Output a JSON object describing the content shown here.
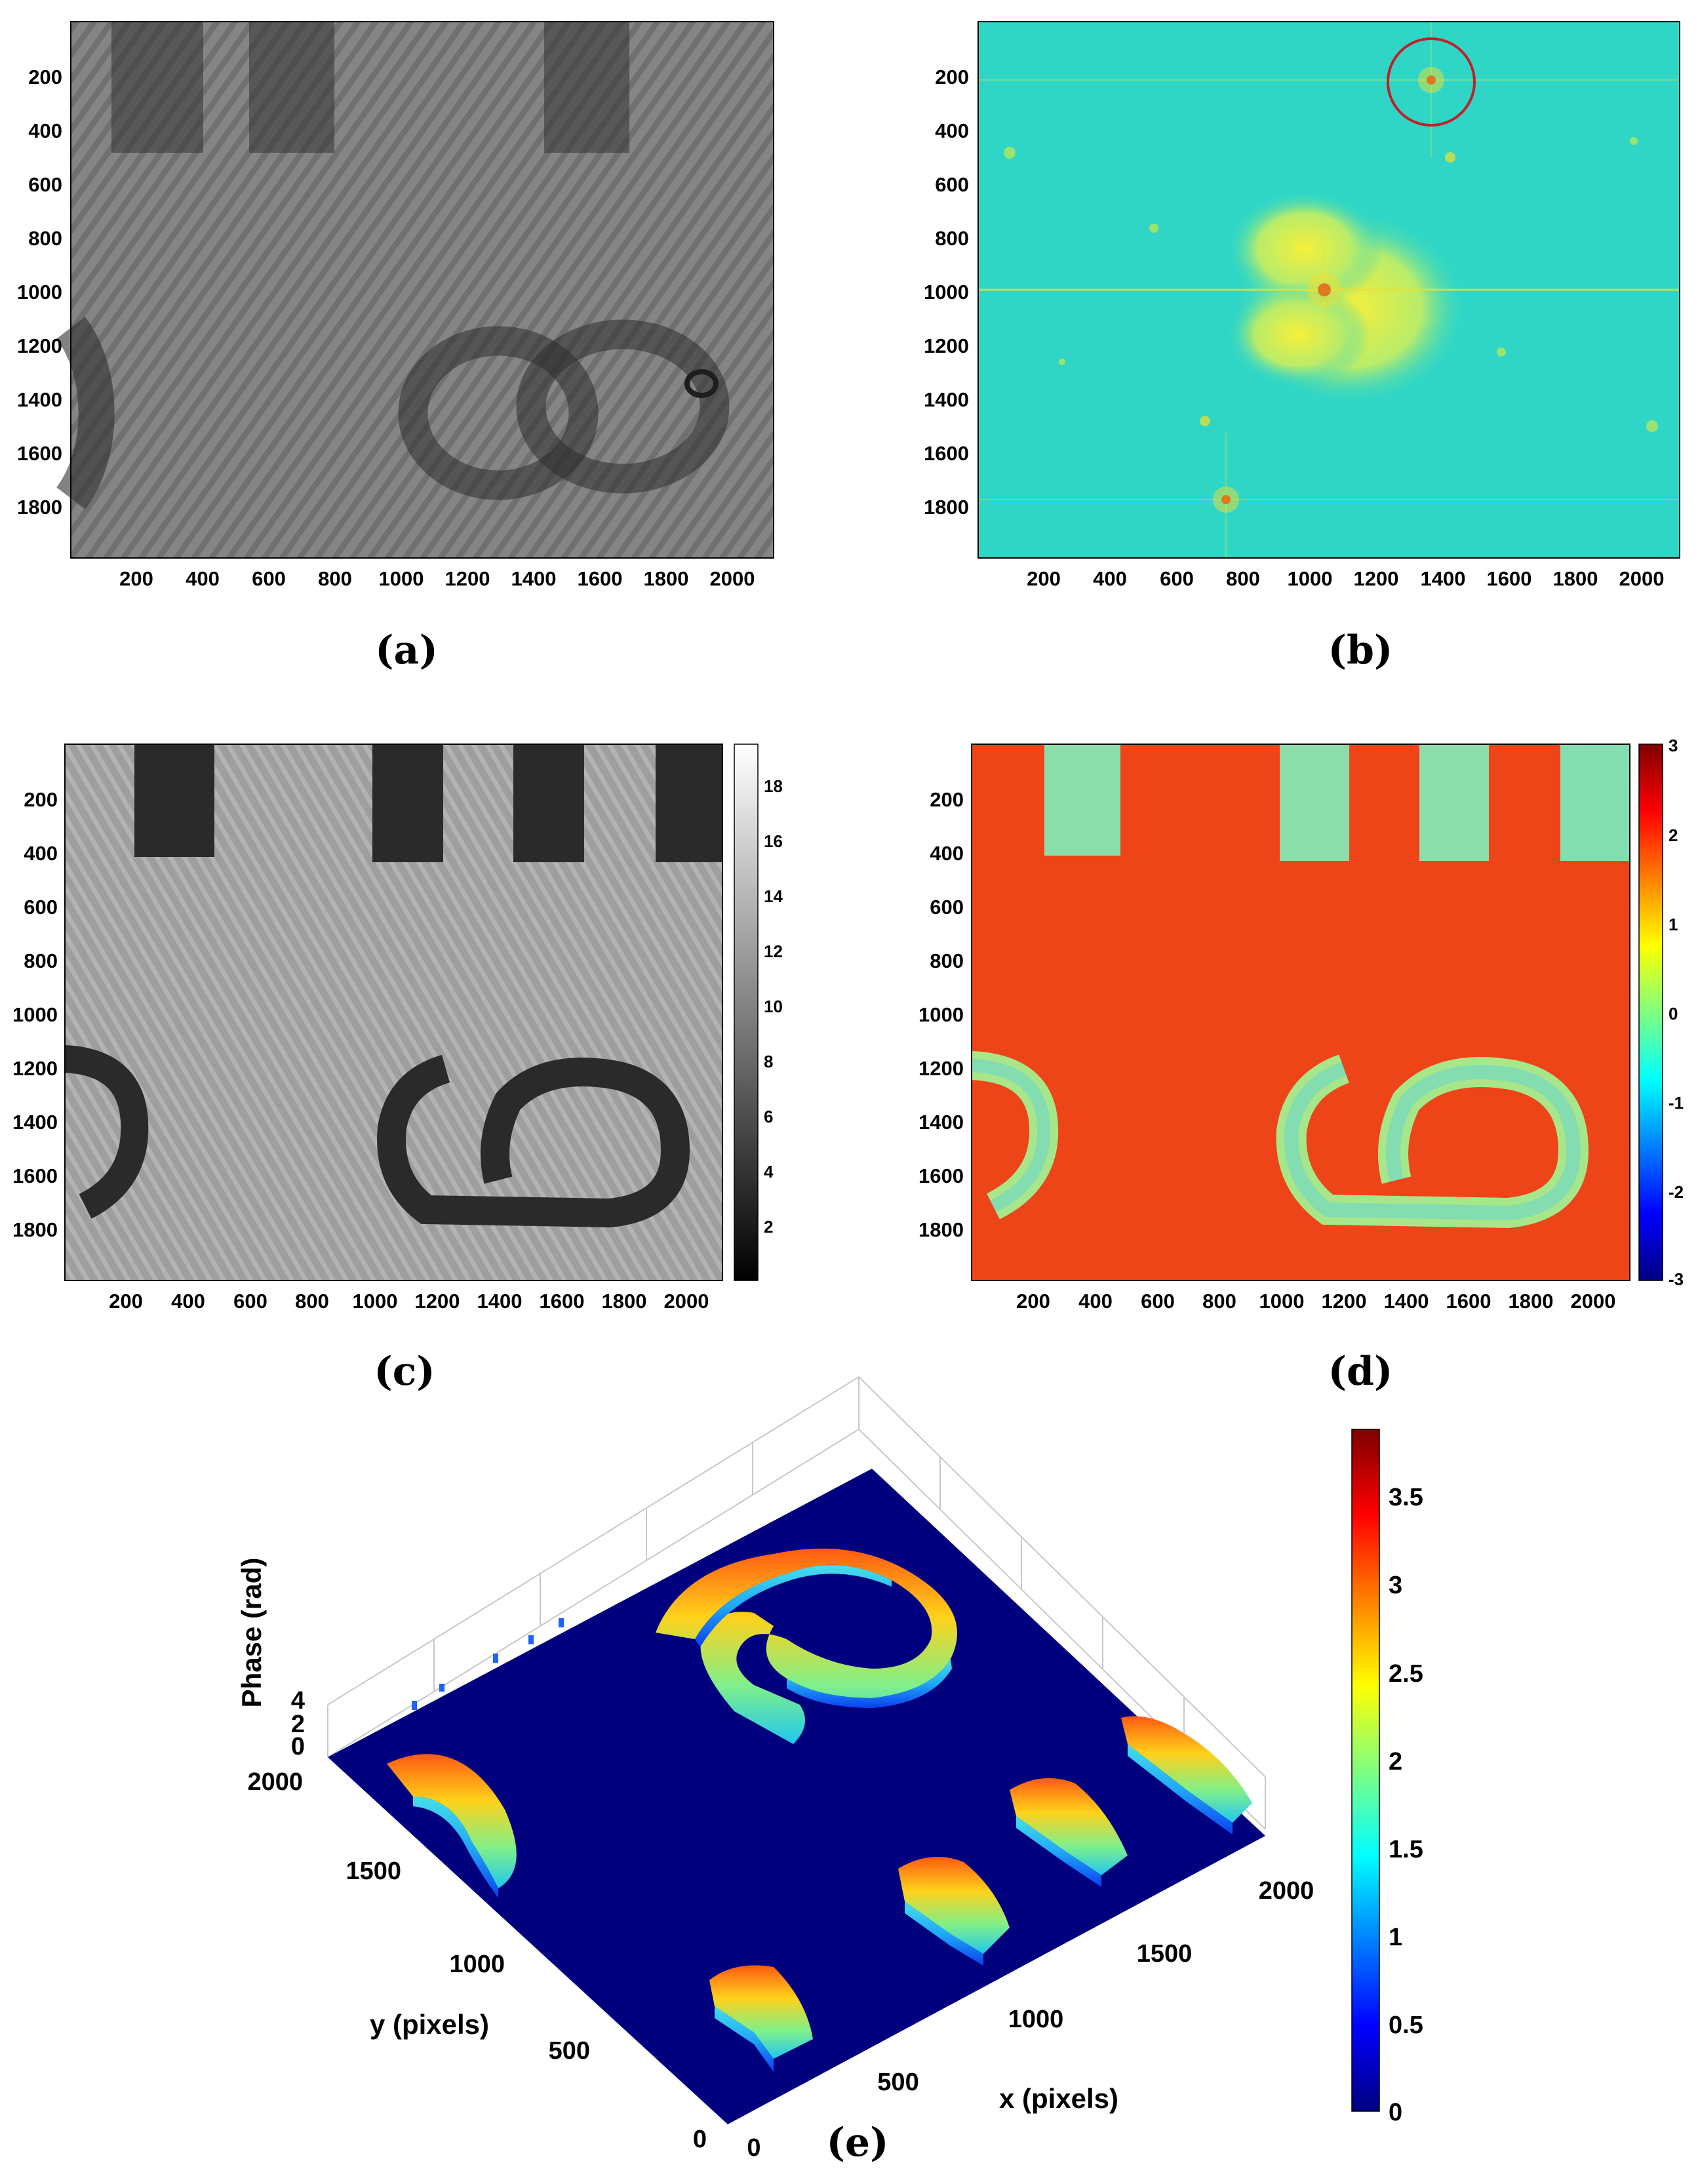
{
  "figure": {
    "panels": [
      {
        "id": "a",
        "caption": "(a)",
        "type": "image",
        "colormap": "gray",
        "x_ticks": [
          "200",
          "400",
          "600",
          "800",
          "1000",
          "1200",
          "1400",
          "1600",
          "1800",
          "2000"
        ],
        "y_ticks": [
          "200",
          "400",
          "600",
          "800",
          "1000",
          "1200",
          "1400",
          "1600",
          "1800"
        ]
      },
      {
        "id": "b",
        "caption": "(b)",
        "type": "image",
        "colormap": "jet",
        "x_ticks": [
          "200",
          "400",
          "600",
          "800",
          "1000",
          "1200",
          "1400",
          "1600",
          "1800",
          "2000"
        ],
        "y_ticks": [
          "200",
          "400",
          "600",
          "800",
          "1000",
          "1200",
          "1400",
          "1600",
          "1800"
        ],
        "annotation": "circle around +1 order peak near (1380, 230)"
      },
      {
        "id": "c",
        "caption": "(c)",
        "type": "image",
        "colormap": "gray",
        "x_ticks": [
          "200",
          "400",
          "600",
          "800",
          "1000",
          "1200",
          "1400",
          "1600",
          "1800",
          "2000"
        ],
        "y_ticks": [
          "200",
          "400",
          "600",
          "800",
          "1000",
          "1200",
          "1400",
          "1600",
          "1800"
        ],
        "colorbar_ticks": [
          "2",
          "4",
          "6",
          "8",
          "10",
          "12",
          "14",
          "16",
          "18"
        ]
      },
      {
        "id": "d",
        "caption": "(d)",
        "type": "image",
        "colormap": "jet",
        "x_ticks": [
          "200",
          "400",
          "600",
          "800",
          "1000",
          "1200",
          "1400",
          "1600",
          "1800",
          "2000"
        ],
        "y_ticks": [
          "200",
          "400",
          "600",
          "800",
          "1000",
          "1200",
          "1400",
          "1600",
          "1800"
        ],
        "colorbar_ticks": [
          "3",
          "2",
          "1",
          "0",
          "-1",
          "-2",
          "-3"
        ]
      },
      {
        "id": "e",
        "caption": "(e)",
        "type": "surface3d",
        "colormap": "jet",
        "x_label": "x (pixels)",
        "y_label": "y (pixels)",
        "z_label": "Phase (rad)",
        "x_ticks": [
          "0",
          "500",
          "1000",
          "1500",
          "2000"
        ],
        "y_ticks": [
          "0",
          "500",
          "1000",
          "1500",
          "2000"
        ],
        "z_ticks": [
          "0",
          "2",
          "4"
        ],
        "colorbar_ticks": [
          "3.5",
          "3",
          "2.5",
          "2",
          "1.5",
          "1",
          "0.5",
          "0"
        ]
      }
    ]
  },
  "chart_data": [
    {
      "type": "heatmap",
      "panel": "a",
      "xlim": [
        0,
        2100
      ],
      "ylim": [
        2000,
        0
      ],
      "grid": false
    },
    {
      "type": "heatmap",
      "panel": "b",
      "xlim": [
        0,
        2100
      ],
      "ylim": [
        2000,
        0
      ],
      "grid": false,
      "peaks": [
        {
          "x": 1380,
          "y": 230
        },
        {
          "x": 1065,
          "y": 1000
        },
        {
          "x": 750,
          "y": 1770
        }
      ]
    },
    {
      "type": "heatmap",
      "panel": "c",
      "xlim": [
        0,
        2100
      ],
      "ylim": [
        2000,
        0
      ],
      "clim": [
        0,
        19.5
      ],
      "grid": false
    },
    {
      "type": "heatmap",
      "panel": "d",
      "xlim": [
        0,
        2100
      ],
      "ylim": [
        2000,
        0
      ],
      "clim": [
        -3,
        3
      ],
      "grid": false
    },
    {
      "type": "heatmap",
      "panel": "e",
      "xlim": [
        0,
        2100
      ],
      "ylim": [
        0,
        2100
      ],
      "zlim": [
        0,
        4
      ],
      "clim": [
        0,
        3.85
      ],
      "grid": true
    }
  ],
  "colors": {
    "jet_dark": "#00007f",
    "jet_blue": "#0000ff",
    "jet_cyan": "#00ffff",
    "jet_yellow": "#ffff00",
    "jet_red": "#ff0000",
    "jet_darkred": "#7f0000",
    "fft_bg": "#2fd6c6",
    "phase_bg": "#f04a1a",
    "circle": "#c0202a"
  }
}
